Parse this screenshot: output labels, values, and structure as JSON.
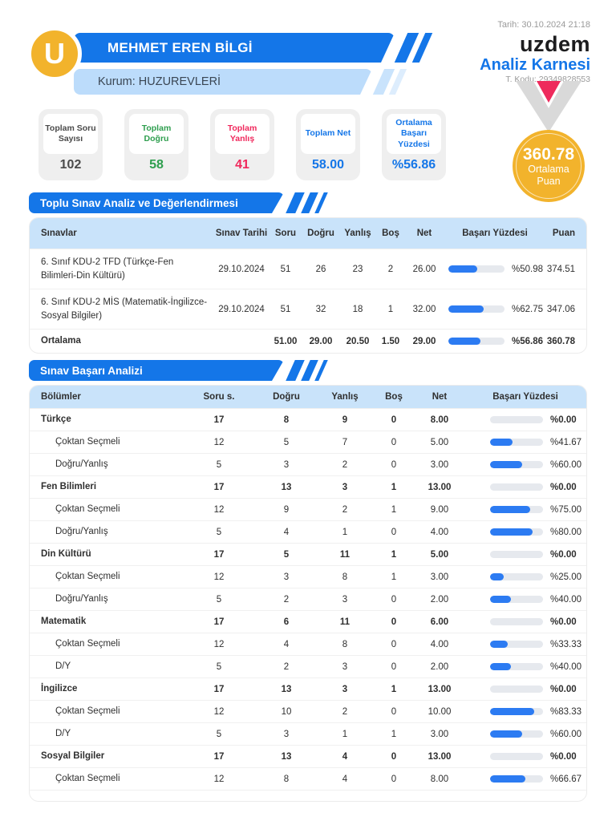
{
  "header": {
    "student_name": "MEHMET EREN BİLGİ",
    "institution": "Kurum: HUZUREVLERİ",
    "date_label": "Tarih: 30.10.2024 21:18",
    "brand": "uzdem",
    "report_title": "Analiz Karnesi",
    "t_code": "T. Kodu: 29349828553",
    "logo_letter": "U"
  },
  "medal": {
    "score": "360.78",
    "label_line1": "Ortalama",
    "label_line2": "Puan"
  },
  "summary_cards": [
    {
      "label": "Toplam Soru Sayısı",
      "value": "102",
      "color": "#4a4a4a"
    },
    {
      "label": "Toplam Doğru",
      "value": "58",
      "color": "#2e9e4e"
    },
    {
      "label": "Toplam Yanlış",
      "value": "41",
      "color": "#f0285c"
    },
    {
      "label": "Toplam Net",
      "value": "58.00",
      "color": "#1476e8"
    },
    {
      "label": "Ortalama Başarı Yüzdesi",
      "value": "%56.86",
      "color": "#1476e8"
    }
  ],
  "colors": {
    "primary_blue": "#1476e8",
    "light_blue": "#bcdcfb",
    "table_header_blue": "#c9e3fa",
    "bar_fill": "#2c7bf2",
    "green": "#2e9e4e",
    "red": "#f0285c",
    "gold": "#f2b32c",
    "medal_pink": "#ee2a5c",
    "medal_gray": "#d9d9d9"
  },
  "section1": {
    "title": "Toplu Sınav Analiz ve Değerlendirmesi",
    "columns": [
      "Sınavlar",
      "Sınav Tarihi",
      "Soru",
      "Doğru",
      "Yanlış",
      "Boş",
      "Net",
      "Başarı Yüzdesi",
      "Puan"
    ],
    "rows": [
      {
        "name": "6. Sınıf KDU-2 TFD (Türkçe-Fen Bilimleri-Din Kültürü)",
        "date": "29.10.2024",
        "soru": "51",
        "dogru": "26",
        "yanlis": "23",
        "bos": "2",
        "net": "26.00",
        "pct": 50.98,
        "pct_label": "%50.98",
        "puan": "374.51",
        "bold": false
      },
      {
        "name": "6. Sınıf KDU-2 MİS (Matematik-İngilizce-Sosyal Bilgiler)",
        "date": "29.10.2024",
        "soru": "51",
        "dogru": "32",
        "yanlis": "18",
        "bos": "1",
        "net": "32.00",
        "pct": 62.75,
        "pct_label": "%62.75",
        "puan": "347.06",
        "bold": false
      },
      {
        "name": "Ortalama",
        "date": "",
        "soru": "51.00",
        "dogru": "29.00",
        "yanlis": "20.50",
        "bos": "1.50",
        "net": "29.00",
        "pct": 56.86,
        "pct_label": "%56.86",
        "puan": "360.78",
        "bold": true
      }
    ]
  },
  "section2": {
    "title": "Sınav Başarı Analizi",
    "columns": [
      "Bölümler",
      "Soru s.",
      "Doğru",
      "Yanlış",
      "Boş",
      "Net",
      "Başarı Yüzdesi"
    ],
    "rows": [
      {
        "name": "Türkçe",
        "soru": "17",
        "dogru": "8",
        "yanlis": "9",
        "bos": "0",
        "net": "8.00",
        "pct": 0,
        "pct_label": "%0.00",
        "bold": true
      },
      {
        "name": "Çoktan Seçmeli",
        "soru": "12",
        "dogru": "5",
        "yanlis": "7",
        "bos": "0",
        "net": "5.00",
        "pct": 41.67,
        "pct_label": "%41.67",
        "bold": false
      },
      {
        "name": "Doğru/Yanlış",
        "soru": "5",
        "dogru": "3",
        "yanlis": "2",
        "bos": "0",
        "net": "3.00",
        "pct": 60,
        "pct_label": "%60.00",
        "bold": false
      },
      {
        "name": "Fen Bilimleri",
        "soru": "17",
        "dogru": "13",
        "yanlis": "3",
        "bos": "1",
        "net": "13.00",
        "pct": 0,
        "pct_label": "%0.00",
        "bold": true
      },
      {
        "name": "Çoktan Seçmeli",
        "soru": "12",
        "dogru": "9",
        "yanlis": "2",
        "bos": "1",
        "net": "9.00",
        "pct": 75,
        "pct_label": "%75.00",
        "bold": false
      },
      {
        "name": "Doğru/Yanlış",
        "soru": "5",
        "dogru": "4",
        "yanlis": "1",
        "bos": "0",
        "net": "4.00",
        "pct": 80,
        "pct_label": "%80.00",
        "bold": false
      },
      {
        "name": "Din Kültürü",
        "soru": "17",
        "dogru": "5",
        "yanlis": "11",
        "bos": "1",
        "net": "5.00",
        "pct": 0,
        "pct_label": "%0.00",
        "bold": true
      },
      {
        "name": "Çoktan Seçmeli",
        "soru": "12",
        "dogru": "3",
        "yanlis": "8",
        "bos": "1",
        "net": "3.00",
        "pct": 25,
        "pct_label": "%25.00",
        "bold": false
      },
      {
        "name": "Doğru/Yanlış",
        "soru": "5",
        "dogru": "2",
        "yanlis": "3",
        "bos": "0",
        "net": "2.00",
        "pct": 40,
        "pct_label": "%40.00",
        "bold": false
      },
      {
        "name": "Matematik",
        "soru": "17",
        "dogru": "6",
        "yanlis": "11",
        "bos": "0",
        "net": "6.00",
        "pct": 0,
        "pct_label": "%0.00",
        "bold": true
      },
      {
        "name": "Çoktan Seçmeli",
        "soru": "12",
        "dogru": "4",
        "yanlis": "8",
        "bos": "0",
        "net": "4.00",
        "pct": 33.33,
        "pct_label": "%33.33",
        "bold": false
      },
      {
        "name": "D/Y",
        "soru": "5",
        "dogru": "2",
        "yanlis": "3",
        "bos": "0",
        "net": "2.00",
        "pct": 40,
        "pct_label": "%40.00",
        "bold": false
      },
      {
        "name": "İngilizce",
        "soru": "17",
        "dogru": "13",
        "yanlis": "3",
        "bos": "1",
        "net": "13.00",
        "pct": 0,
        "pct_label": "%0.00",
        "bold": true
      },
      {
        "name": "Çoktan Seçmeli",
        "soru": "12",
        "dogru": "10",
        "yanlis": "2",
        "bos": "0",
        "net": "10.00",
        "pct": 83.33,
        "pct_label": "%83.33",
        "bold": false
      },
      {
        "name": "D/Y",
        "soru": "5",
        "dogru": "3",
        "yanlis": "1",
        "bos": "1",
        "net": "3.00",
        "pct": 60,
        "pct_label": "%60.00",
        "bold": false
      },
      {
        "name": "Sosyal Bilgiler",
        "soru": "17",
        "dogru": "13",
        "yanlis": "4",
        "bos": "0",
        "net": "13.00",
        "pct": 0,
        "pct_label": "%0.00",
        "bold": true
      },
      {
        "name": "Çoktan Seçmeli",
        "soru": "12",
        "dogru": "8",
        "yanlis": "4",
        "bos": "0",
        "net": "8.00",
        "pct": 66.67,
        "pct_label": "%66.67",
        "bold": false
      }
    ]
  }
}
